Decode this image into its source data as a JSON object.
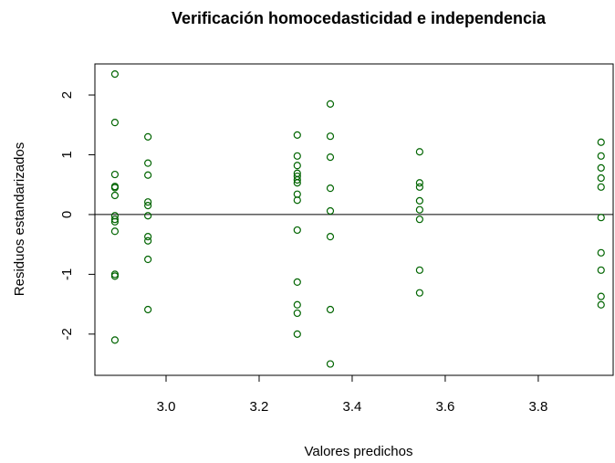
{
  "chart_data": {
    "type": "scatter",
    "title": "Verificación homocedasticidad e independencia",
    "xlabel": "Valores predichos",
    "ylabel": "Residuos estandarizados",
    "color": "#006400",
    "hline": 0,
    "xlim": [
      2.847,
      3.961
    ],
    "ylim": [
      -2.69,
      2.52
    ],
    "xticks": [
      {
        "value": 3.0,
        "label": "3.0"
      },
      {
        "value": 3.2,
        "label": "3.2"
      },
      {
        "value": 3.4,
        "label": "3.4"
      },
      {
        "value": 3.6,
        "label": "3.6"
      },
      {
        "value": 3.8,
        "label": "3.8"
      }
    ],
    "yticks": [
      -2,
      -1,
      0,
      1,
      2
    ],
    "x": [
      2.89,
      2.89,
      2.89,
      2.89,
      2.89,
      2.89,
      2.89,
      2.89,
      2.89,
      2.89,
      2.89,
      2.89,
      2.89,
      2.961,
      2.961,
      2.961,
      2.961,
      2.961,
      2.961,
      2.961,
      2.961,
      2.961,
      2.961,
      3.282,
      3.282,
      3.282,
      3.282,
      3.282,
      3.282,
      3.282,
      3.282,
      3.282,
      3.282,
      3.282,
      3.282,
      3.282,
      3.282,
      3.353,
      3.353,
      3.353,
      3.353,
      3.353,
      3.353,
      3.353,
      3.353,
      3.545,
      3.545,
      3.545,
      3.545,
      3.545,
      3.545,
      3.545,
      3.545,
      3.935,
      3.935,
      3.935,
      3.935,
      3.935,
      3.935,
      3.935,
      3.935,
      3.935,
      3.935
    ],
    "values": [
      2.35,
      1.54,
      0.67,
      0.47,
      0.45,
      0.32,
      -0.02,
      -0.08,
      -0.12,
      -0.28,
      -1.0,
      -1.03,
      -2.1,
      1.3,
      0.86,
      0.66,
      0.21,
      0.15,
      -0.02,
      -0.37,
      -0.44,
      -0.75,
      -1.59,
      1.33,
      0.98,
      0.82,
      0.69,
      0.64,
      0.58,
      0.53,
      0.34,
      0.24,
      -0.26,
      -1.13,
      -1.51,
      -1.65,
      -2.0,
      1.85,
      1.31,
      0.96,
      0.44,
      0.06,
      -0.37,
      -1.59,
      -2.5,
      1.05,
      0.53,
      0.46,
      0.23,
      0.08,
      -0.08,
      -0.93,
      -1.31,
      1.21,
      0.98,
      0.78,
      0.61,
      0.46,
      -0.05,
      -0.64,
      -0.93,
      -1.37,
      -1.51
    ]
  }
}
